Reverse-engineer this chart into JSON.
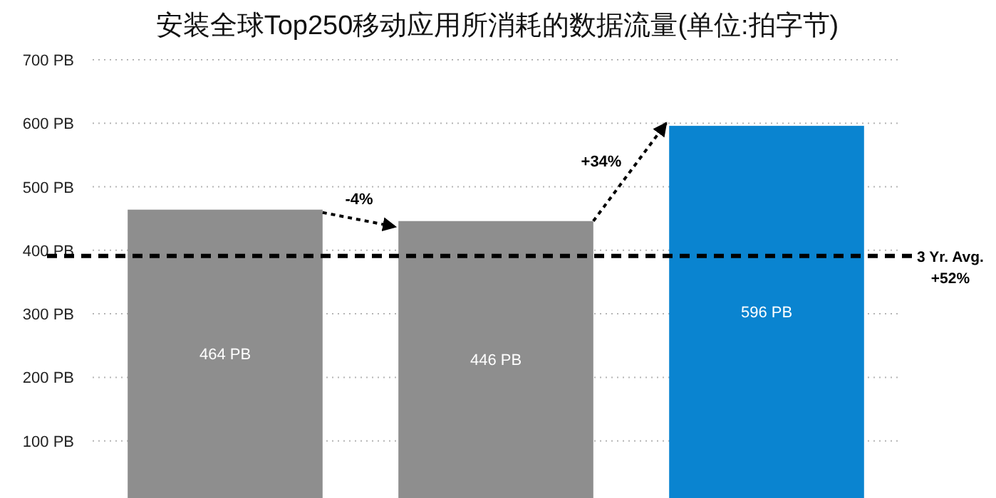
{
  "chart_data": {
    "type": "bar",
    "title": "安装全球Top250移动应用所消耗的数据流量(单位:拍字节)",
    "categories": [
      null,
      null,
      null
    ],
    "values": [
      464,
      446,
      596
    ],
    "colors": [
      "#8e8e8e",
      "#8e8e8e",
      "#0a84d0"
    ],
    "value_labels": [
      "464 PB",
      "446 PB",
      "596 PB"
    ],
    "ylim": [
      10,
      700
    ],
    "yticks": [
      {
        "value": 100,
        "label": "100 PB"
      },
      {
        "value": 200,
        "label": "200 PB"
      },
      {
        "value": 300,
        "label": "300 PB"
      },
      {
        "value": 400,
        "label": "400 PB"
      },
      {
        "value": 500,
        "label": "500 PB"
      },
      {
        "value": 600,
        "label": "600 PB"
      },
      {
        "value": 700,
        "label": "700 PB"
      }
    ],
    "grid": "y",
    "ref_lines": [
      {
        "axis": "y",
        "value": 391,
        "label": "3 Yr. Avg. +52%",
        "color": "#000000",
        "line_style": "dashed"
      }
    ],
    "annotations": [
      "-4%",
      "+34%"
    ]
  }
}
